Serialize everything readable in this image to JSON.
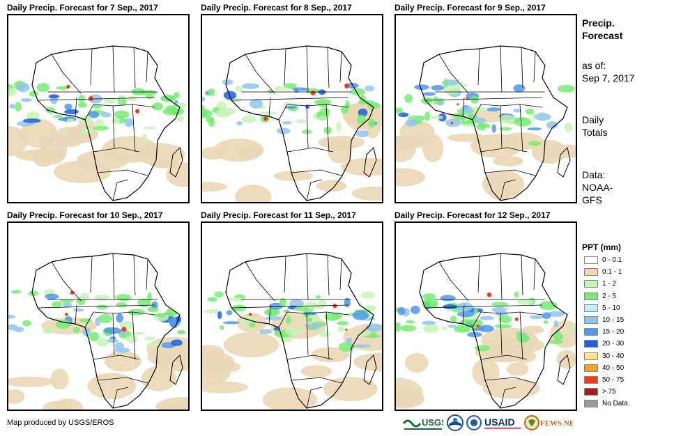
{
  "panels": [
    {
      "title": "Daily Precip. Forecast for 7 Sep., 2017"
    },
    {
      "title": "Daily Precip. Forecast for 8 Sep., 2017"
    },
    {
      "title": "Daily Precip. Forecast for 9 Sep., 2017"
    },
    {
      "title": "Daily Precip. Forecast for 10 Sep., 2017"
    },
    {
      "title": "Daily Precip. Forecast for 11 Sep., 2017"
    },
    {
      "title": "Daily Precip. Forecast for 12 Sep., 2017"
    }
  ],
  "sidebar": {
    "heading_line1": "Precip.",
    "heading_line2": "Forecast",
    "asof_line1": "as of:",
    "asof_line2": "Sep 7, 2017",
    "totals_line1": "Daily",
    "totals_line2": "Totals",
    "source_line1": "Data:",
    "source_line2": "NOAA-",
    "source_line3": "GFS"
  },
  "legend": {
    "title": "PPT (mm)",
    "items": [
      {
        "label": "0 - 0.1",
        "color": "#ffffff"
      },
      {
        "label": "0.1 - 1",
        "color": "#ead8b5"
      },
      {
        "label": "1 - 2",
        "color": "#c5f5b5"
      },
      {
        "label": "2 - 5",
        "color": "#76ec72"
      },
      {
        "label": "5 - 10",
        "color": "#c3f0f7"
      },
      {
        "label": "10 - 15",
        "color": "#8fc6ee"
      },
      {
        "label": "15 - 20",
        "color": "#4d98ea"
      },
      {
        "label": "20 - 30",
        "color": "#1c5fe0"
      },
      {
        "label": "30 - 40",
        "color": "#ffe38a"
      },
      {
        "label": "40 - 50",
        "color": "#f6a222"
      },
      {
        "label": "50 - 75",
        "color": "#f23a10"
      },
      {
        "label": "> 75",
        "color": "#a81d12"
      },
      {
        "label": "No Data",
        "color": "#999999"
      }
    ]
  },
  "footer": {
    "credit": "Map produced by USGS/EROS",
    "logos": [
      "USGS",
      "NOAA",
      "USAID",
      "FEWS NET"
    ]
  }
}
